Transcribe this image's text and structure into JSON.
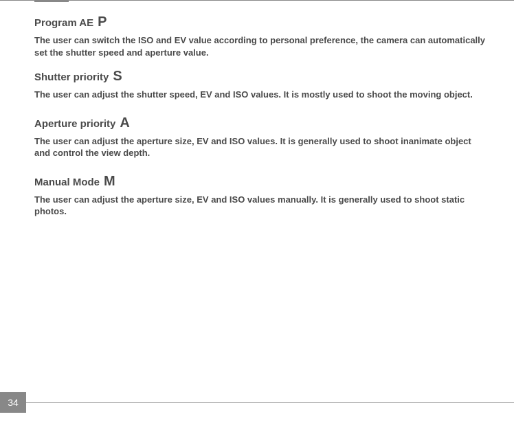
{
  "page_number": "34",
  "colors": {
    "text": "#4a4a4a",
    "accent": "#888888",
    "page_number_bg": "#888888",
    "page_number_text": "#ffffff",
    "background": "#ffffff"
  },
  "sections": [
    {
      "title": "Program AE",
      "mode_letter": "P",
      "body": "The user can switch the ISO and EV value according to personal preference, the camera can automatically set the shutter speed and aperture value."
    },
    {
      "title": "Shutter priority",
      "mode_letter": "S",
      "body": "The user can adjust the shutter speed, EV and ISO values. It is mostly used to shoot the moving object."
    },
    {
      "title": "Aperture priority",
      "mode_letter": "A",
      "body": "The user can adjust the aperture size, EV and ISO values. It is generally used to shoot inanimate object and control the view depth."
    },
    {
      "title": "Manual Mode",
      "mode_letter": "M",
      "body": "The user can adjust the aperture size, EV and ISO values manually. It is generally used to shoot static photos."
    }
  ]
}
